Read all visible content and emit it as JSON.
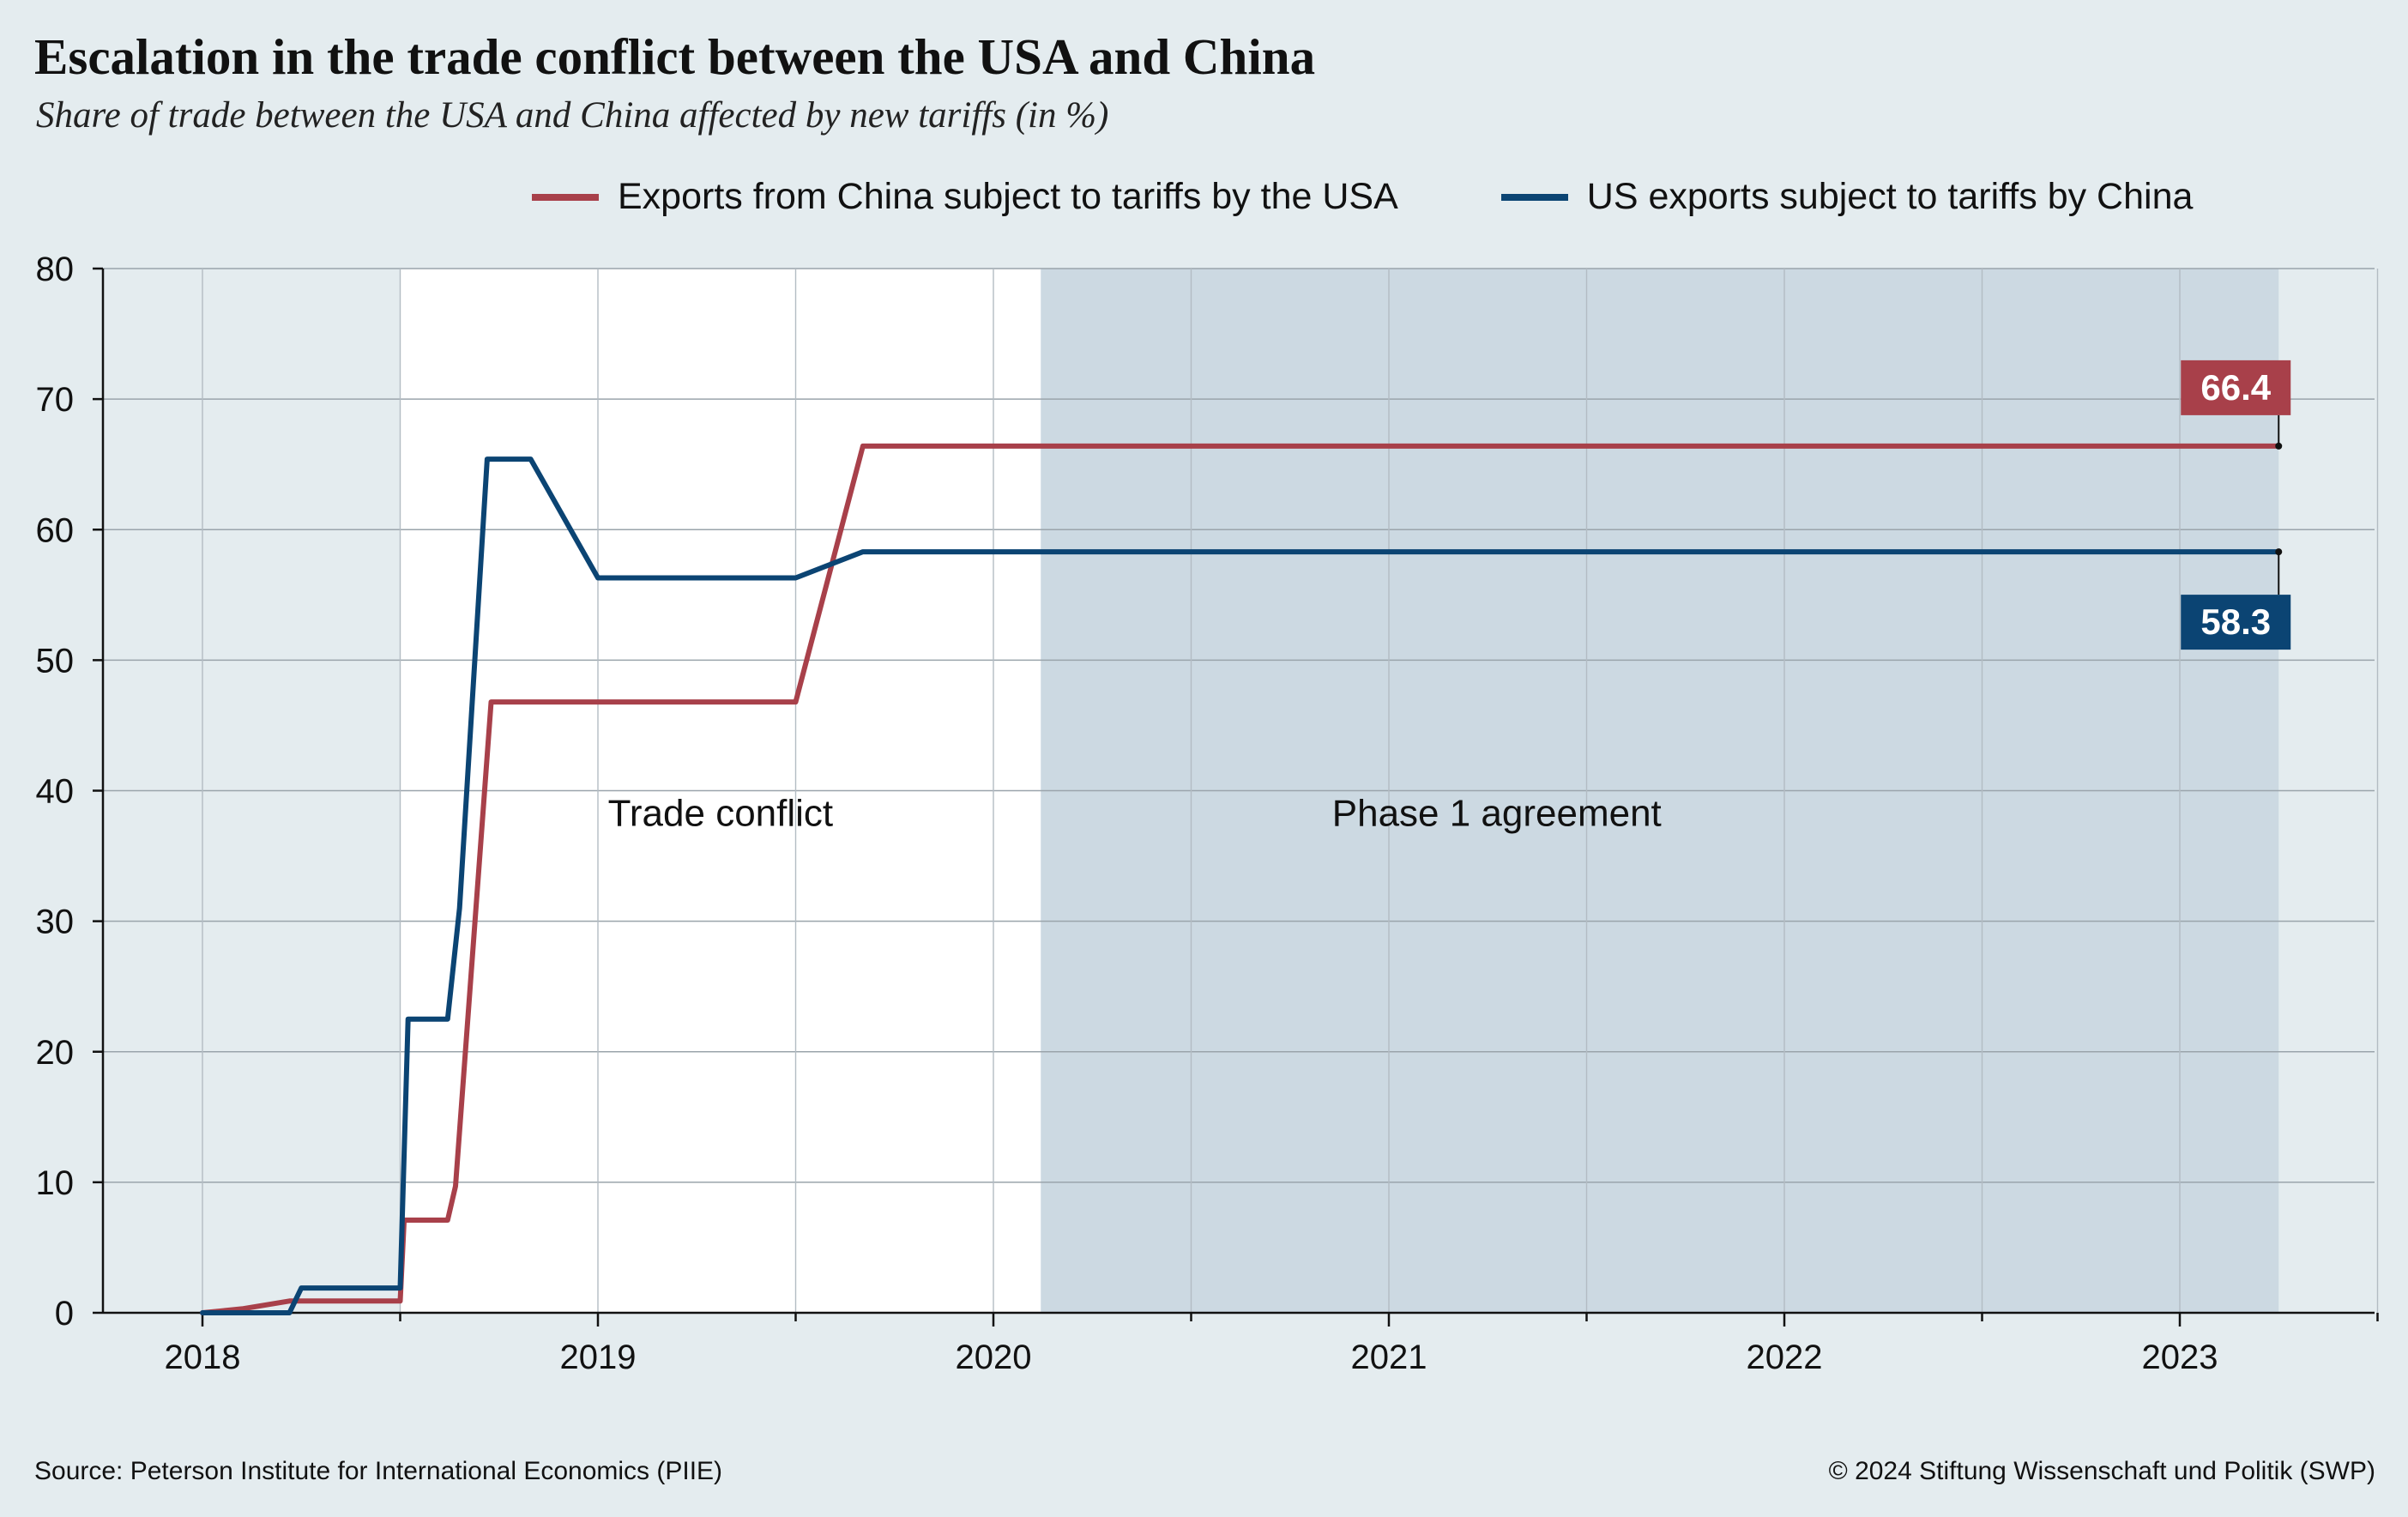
{
  "header": {
    "title": "Escalation in the trade conflict between the USA and China",
    "subtitle": "Share of trade between the USA and China affected by new tariffs (in %)"
  },
  "legend": {
    "items": [
      {
        "label": "Exports from China subject to tariffs by the USA",
        "color": "#a8404a"
      },
      {
        "label": "US exports subject to tariffs by China",
        "color": "#0b4473"
      }
    ]
  },
  "footer": {
    "source": "Source: Peterson Institute for International Economics (PIIE)",
    "copyright": "© 2024 Stiftung Wissenschaft und Politik (SWP)"
  },
  "colors": {
    "page_background": "#e4ecef",
    "conflict_region": "#ffffff",
    "agreement_region": "#ccd9e2",
    "china_series": "#a8404a",
    "us_series": "#0b4473"
  },
  "chart_data": {
    "type": "line",
    "x_unit": "decimal year",
    "xlim": [
      2017.75,
      2023.5
    ],
    "ylim": [
      0,
      80
    ],
    "xticks": [
      2018,
      2019,
      2020,
      2021,
      2022,
      2023
    ],
    "xtick_labels": [
      "2018",
      "2019",
      "2020",
      "2021",
      "2022",
      "2023"
    ],
    "yticks": [
      0,
      10,
      20,
      30,
      40,
      50,
      60,
      70,
      80
    ],
    "ytick_labels": [
      "0",
      "10",
      "20",
      "30",
      "40",
      "50",
      "60",
      "70",
      "80"
    ],
    "grid": true,
    "legend_position": "top",
    "shaded_regions": [
      {
        "label": "Trade conflict",
        "x_start": 2018.5,
        "x_end": 2020.12,
        "fill": "#ffffff"
      },
      {
        "label": "Phase 1 agreement",
        "x_start": 2020.12,
        "x_end": 2023.25,
        "fill": "#ccd9e2"
      }
    ],
    "series": [
      {
        "name": "Exports from China subject to tariffs by the USA",
        "color": "#a8404a",
        "end_label": "66.4",
        "points": [
          [
            2018.0,
            0
          ],
          [
            2018.1,
            0.3
          ],
          [
            2018.22,
            0.9
          ],
          [
            2018.5,
            0.9
          ],
          [
            2018.51,
            7.1
          ],
          [
            2018.62,
            7.1
          ],
          [
            2018.64,
            9.7
          ],
          [
            2018.73,
            46.8
          ],
          [
            2019.5,
            46.8
          ],
          [
            2019.67,
            66.4
          ],
          [
            2023.25,
            66.4
          ]
        ]
      },
      {
        "name": "US exports subject to tariffs by China",
        "color": "#0b4473",
        "end_label": "58.3",
        "points": [
          [
            2018.0,
            0
          ],
          [
            2018.22,
            0
          ],
          [
            2018.25,
            1.9
          ],
          [
            2018.5,
            1.9
          ],
          [
            2018.52,
            22.5
          ],
          [
            2018.62,
            22.5
          ],
          [
            2018.65,
            31.0
          ],
          [
            2018.72,
            65.4
          ],
          [
            2018.83,
            65.4
          ],
          [
            2019.0,
            56.3
          ],
          [
            2019.5,
            56.3
          ],
          [
            2019.67,
            58.3
          ],
          [
            2023.25,
            58.3
          ]
        ]
      }
    ]
  }
}
